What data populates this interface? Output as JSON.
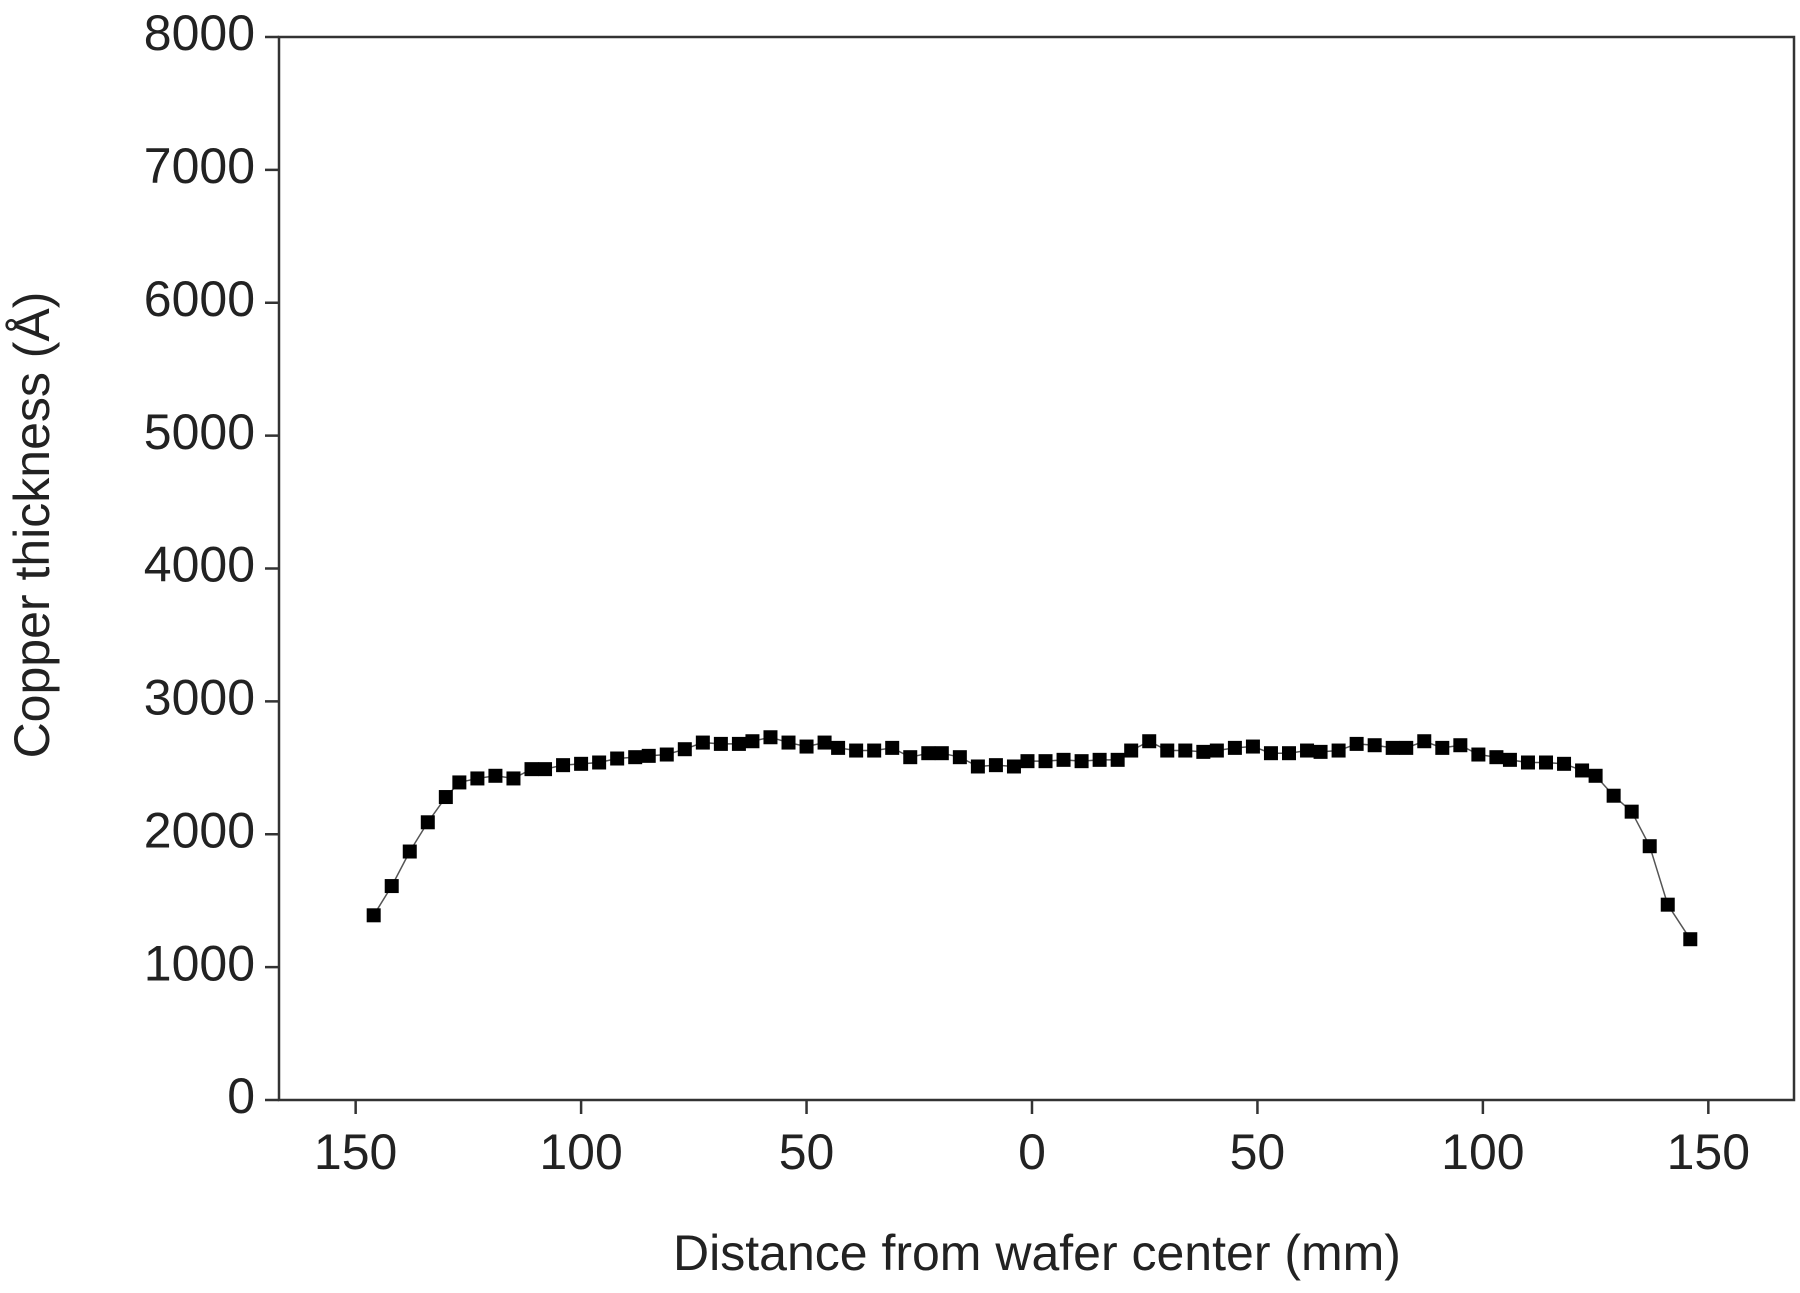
{
  "chart_data": {
    "type": "line",
    "x_label": "Distance from wafer center (mm)",
    "y_label": "Copper thickness (Å)",
    "x": [
      -146,
      -142,
      -138,
      -134,
      -130,
      -127,
      -123,
      -119,
      -115,
      -111,
      -108,
      -104,
      -100,
      -96,
      -92,
      -88,
      -85,
      -81,
      -77,
      -73,
      -69,
      -65,
      -62,
      -58,
      -54,
      -50,
      -46,
      -43,
      -39,
      -35,
      -31,
      -27,
      -23,
      -20,
      -16,
      -12,
      -8,
      -4,
      -1,
      3,
      7,
      11,
      15,
      19,
      22,
      26,
      30,
      34,
      38,
      41,
      45,
      49,
      53,
      57,
      61,
      64,
      68,
      72,
      76,
      80,
      83,
      87,
      91,
      95,
      99,
      103,
      106,
      110,
      114,
      118,
      122,
      125,
      129,
      133,
      137,
      141,
      146
    ],
    "series": [
      {
        "color": "#000000",
        "line_color": "#555555",
        "values": [
          1390,
          1610,
          1870,
          2090,
          2280,
          2390,
          2420,
          2440,
          2420,
          2490,
          2490,
          2520,
          2530,
          2540,
          2570,
          2580,
          2590,
          2600,
          2640,
          2690,
          2680,
          2680,
          2700,
          2730,
          2690,
          2660,
          2690,
          2650,
          2630,
          2630,
          2650,
          2580,
          2610,
          2610,
          2580,
          2510,
          2520,
          2510,
          2550,
          2550,
          2560,
          2550,
          2560,
          2560,
          2630,
          2700,
          2630,
          2630,
          2620,
          2630,
          2650,
          2660,
          2610,
          2610,
          2630,
          2620,
          2630,
          2680,
          2670,
          2650,
          2650,
          2700,
          2650,
          2670,
          2600,
          2580,
          2560,
          2540,
          2540,
          2530,
          2480,
          2440,
          2290,
          2170,
          1910,
          1470,
          1210
        ]
      }
    ],
    "xlim": [
      -167,
      169
    ],
    "xticks": [
      {
        "value": -150,
        "label": "150"
      },
      {
        "value": -100,
        "label": "100"
      },
      {
        "value": -50,
        "label": "50"
      },
      0,
      {
        "value": 50,
        "label": "50"
      },
      {
        "value": 100,
        "label": "100"
      },
      {
        "value": 150,
        "label": "150"
      }
    ],
    "ylim": [
      0,
      8000
    ],
    "yticks": [
      0,
      1000,
      2000,
      3000,
      4000,
      5000,
      6000,
      7000,
      8000
    ]
  }
}
